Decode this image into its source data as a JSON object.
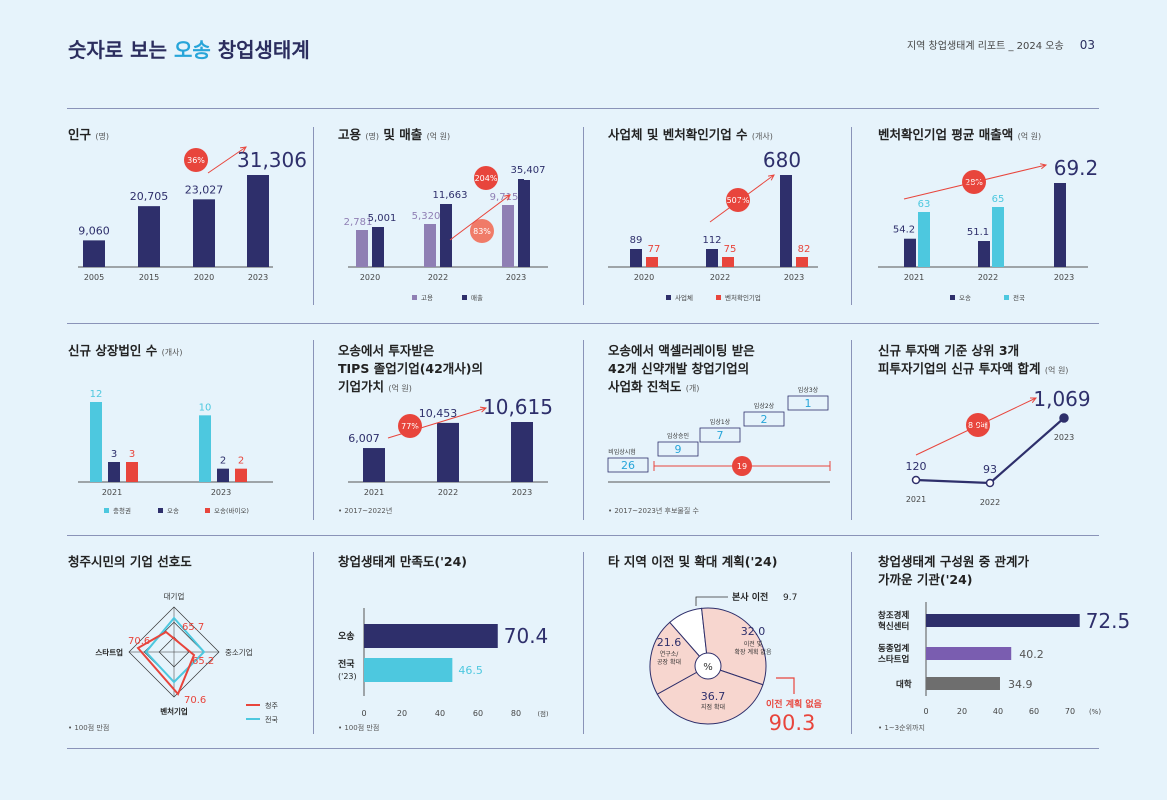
{
  "header": {
    "title_pre": "숫자로 보는 ",
    "title_hl": "오송",
    "title_post": " 창업생태계",
    "report": "지역 창업생태계 리포트 _ 2024 오송",
    "page": "03"
  },
  "colors": {
    "navy": "#2e2f6b",
    "cyan": "#4dc8df",
    "red": "#e8453c",
    "purple": "#8f7fb4",
    "gray": "#6e6e6e",
    "violet": "#7a5db0",
    "pink": "#f7d6cf"
  },
  "panels": {
    "population": {
      "title": "인구",
      "unit": "(명)",
      "badge": "36%"
    },
    "employment": {
      "title": "고용",
      "unit1": "(명)",
      "mid": "및 매출",
      "unit2": "(억 원)",
      "badge1": "204%",
      "badge2": "83%",
      "legend": [
        "고용",
        "매출"
      ]
    },
    "companies": {
      "title": "사업체 및 벤처확인기업 수",
      "unit": "(개사)",
      "badge": "507%",
      "legend": [
        "사업체",
        "벤처확인기업"
      ]
    },
    "venture_sales": {
      "title": "벤처확인기업 평균 매출액",
      "unit": "(억 원)",
      "badge": "28%",
      "legend": [
        "오송",
        "전국"
      ]
    },
    "listed": {
      "title": "신규 상장법인 수",
      "unit": "(개사)",
      "legend": [
        "충청권",
        "오송",
        "오송(바이오)"
      ]
    },
    "tips": {
      "title1": "오송에서 투자받은",
      "title2": "TIPS 졸업기업(42개사)의",
      "title3": "기업가치",
      "unit": "(억 원)",
      "badge": "77%",
      "note": "• 2017~2022년"
    },
    "pipeline": {
      "title1": "오송에서 액셀러레이팅 받은",
      "title2": "42개 신약개발 창업기업의",
      "title3": "사업화 진척도",
      "unit": "(개)",
      "note": "• 2017~2023년 후보물질 수",
      "badge": "19"
    },
    "investment": {
      "title1": "신규 투자액 기준 상위 3개",
      "title2": "피투자기업의 신규 투자액 합계",
      "unit": "(억 원)",
      "badge": "8.9배"
    },
    "preference": {
      "title": "청주시민의 기업 선호도",
      "axes": [
        "대기업",
        "중소기업",
        "벤처기업",
        "스타트업"
      ],
      "legend": [
        "청주",
        "전국"
      ],
      "note": "• 100점 만점"
    },
    "satisfaction": {
      "title": "창업생태계 만족도('24)",
      "note": "• 100점 만점",
      "unit": "(점)"
    },
    "relocation": {
      "title": "타 지역 이전 및 확대 계획('24)",
      "center": "%",
      "label_none": "이전 계획 없음"
    },
    "institutions": {
      "title1": "창업생태계 구성원 중 관계가",
      "title2": "가까운 기관('24)",
      "unit": "(%)",
      "note": "• 1~3순위까지"
    }
  },
  "chart_data": [
    {
      "type": "bar",
      "id": "population",
      "categories": [
        "2005",
        "2015",
        "2020",
        "2023"
      ],
      "values": [
        9060,
        20705,
        23027,
        31306
      ],
      "labels": [
        "9,060",
        "20,705",
        "23,027",
        "31,306"
      ]
    },
    {
      "type": "bar",
      "id": "employment",
      "categories": [
        "2020",
        "2022",
        "2023"
      ],
      "series": [
        {
          "name": "고용",
          "values": [
            2781,
            5320,
            9715
          ],
          "labels": [
            "2,781",
            "5,320",
            "9,715"
          ]
        },
        {
          "name": "매출",
          "values": [
            5001,
            11663,
            35407
          ],
          "labels": [
            "5,001",
            "11,663",
            "35,407"
          ]
        }
      ]
    },
    {
      "type": "bar",
      "id": "companies",
      "categories": [
        "2020",
        "2022",
        "2023"
      ],
      "series": [
        {
          "name": "사업체",
          "values": [
            89,
            112,
            680
          ]
        },
        {
          "name": "벤처확인기업",
          "values": [
            77,
            75,
            82
          ]
        }
      ]
    },
    {
      "type": "bar",
      "id": "venture_sales",
      "categories": [
        "2021",
        "2022",
        "2023"
      ],
      "series": [
        {
          "name": "오송",
          "values": [
            54.2,
            51.1,
            69.2
          ],
          "labels": [
            "54.2",
            "51.1",
            "69.2"
          ]
        },
        {
          "name": "전국",
          "values": [
            63,
            65,
            null
          ],
          "labels": [
            "63",
            "65",
            ""
          ]
        }
      ]
    },
    {
      "type": "bar",
      "id": "listed",
      "categories": [
        "2021",
        "2023"
      ],
      "series": [
        {
          "name": "충청권",
          "values": [
            12,
            10
          ]
        },
        {
          "name": "오송",
          "values": [
            3,
            2
          ]
        },
        {
          "name": "오송(바이오)",
          "values": [
            3,
            2
          ]
        }
      ]
    },
    {
      "type": "bar",
      "id": "tips",
      "categories": [
        "2021",
        "2022",
        "2023"
      ],
      "values": [
        6007,
        10453,
        10615
      ],
      "labels": [
        "6,007",
        "10,453",
        "10,615"
      ]
    },
    {
      "type": "bar",
      "id": "pipeline",
      "categories": [
        "비임상시험",
        "임상승인",
        "임상1상",
        "임상2상",
        "임상3상"
      ],
      "values": [
        26,
        9,
        7,
        2,
        1
      ]
    },
    {
      "type": "line",
      "id": "investment",
      "x": [
        "2021",
        "2022",
        "2023"
      ],
      "values": [
        120,
        93,
        1069
      ],
      "labels": [
        "120",
        "93",
        "1,069"
      ]
    },
    {
      "type": "radar",
      "id": "preference",
      "axes": [
        "대기업",
        "중소기업",
        "벤처기업",
        "스타트업"
      ],
      "series": [
        {
          "name": "청주",
          "values": [
            65.7,
            65.2,
            70.6,
            70.6
          ]
        },
        {
          "name": "전국",
          "values": [
            null,
            null,
            null,
            null
          ]
        }
      ],
      "labels": [
        "65.7",
        "65.2",
        "70.6",
        "70.6"
      ]
    },
    {
      "type": "bar",
      "id": "satisfaction",
      "orientation": "horizontal",
      "categories": [
        "오송",
        "전국('23)"
      ],
      "values": [
        70.4,
        46.5
      ],
      "xlim": [
        0,
        100
      ],
      "ticks": [
        "0",
        "20",
        "40",
        "60",
        "80"
      ]
    },
    {
      "type": "pie",
      "id": "relocation",
      "slices": [
        {
          "label": "본사 이전",
          "value": 9.7
        },
        {
          "label": "이전 및 확장 계획 없음",
          "value": 32.0
        },
        {
          "label": "지점 확대",
          "value": 36.7
        },
        {
          "label": "연구소/공장 확대",
          "value": 21.6
        }
      ],
      "total_none": 90.3
    },
    {
      "type": "bar",
      "id": "institutions",
      "orientation": "horizontal",
      "categories": [
        "창조경제혁신센터",
        "동종업계스타트업",
        "대학"
      ],
      "values": [
        72.5,
        40.2,
        34.9
      ],
      "xlim": [
        0,
        90
      ],
      "ticks": [
        "0",
        "20",
        "40",
        "60",
        "70"
      ]
    }
  ]
}
